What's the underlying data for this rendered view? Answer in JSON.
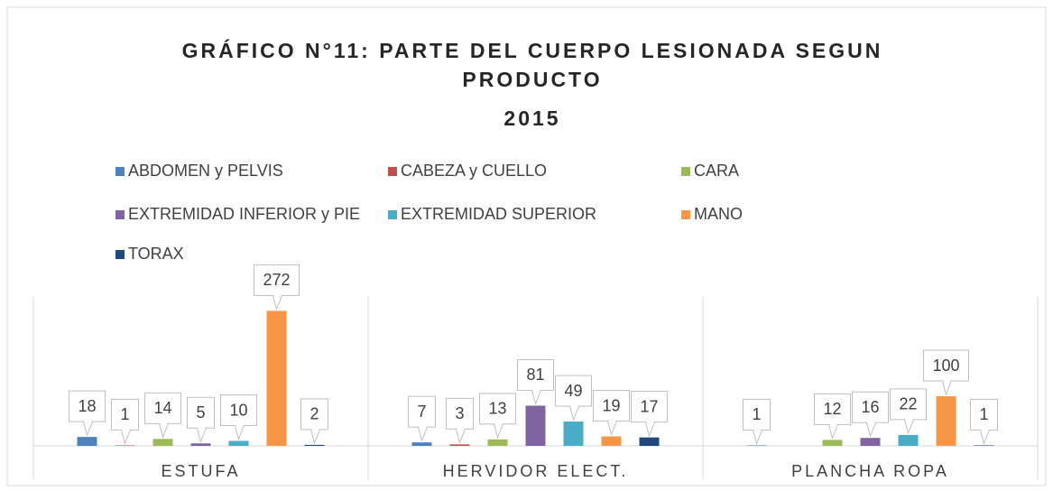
{
  "chart_data": {
    "type": "bar",
    "title": "GRÁFICO N°11: PARTE DEL CUERPO LESIONADA SEGUN PRODUCTO",
    "subtitle": "2015",
    "categories": [
      "ESTUFA",
      "HERVIDOR ELECT.",
      "PLANCHA ROPA"
    ],
    "series": [
      {
        "name": "ABDOMEN y PELVIS",
        "color": "#4f81bd",
        "values": [
          18,
          7,
          1
        ]
      },
      {
        "name": "CABEZA y CUELLO",
        "color": "#c0504d",
        "values": [
          1,
          3,
          null
        ]
      },
      {
        "name": "CARA",
        "color": "#9bbb59",
        "values": [
          14,
          13,
          12
        ]
      },
      {
        "name": "EXTREMIDAD INFERIOR y PIE",
        "color": "#8064a2",
        "values": [
          5,
          81,
          16
        ]
      },
      {
        "name": "EXTREMIDAD SUPERIOR",
        "color": "#4bacc6",
        "values": [
          10,
          49,
          22
        ]
      },
      {
        "name": "MANO",
        "color": "#f79646",
        "values": [
          272,
          19,
          100
        ]
      },
      {
        "name": "TORAX",
        "color": "#1f497d",
        "values": [
          2,
          17,
          1
        ]
      }
    ],
    "ylim": [
      0,
      300
    ],
    "legend": "top"
  }
}
